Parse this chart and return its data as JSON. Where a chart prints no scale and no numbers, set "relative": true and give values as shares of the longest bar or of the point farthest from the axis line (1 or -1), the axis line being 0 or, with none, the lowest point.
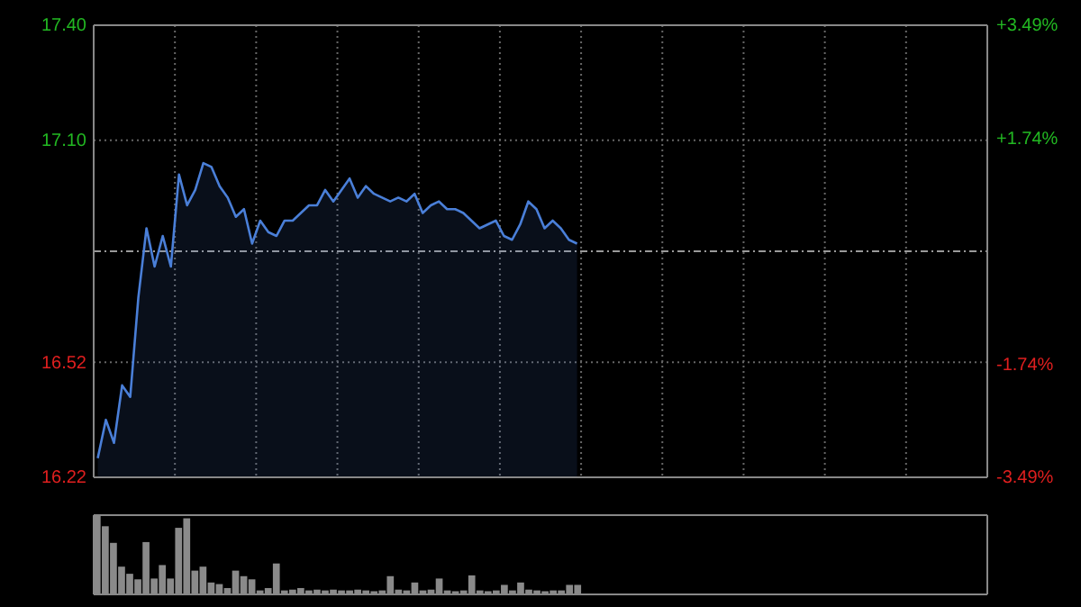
{
  "chart_data": [
    {
      "type": "area",
      "color": "#4a7fd8",
      "categories": [
        null,
        null,
        null,
        null,
        null,
        null,
        null,
        null,
        null,
        null,
        null,
        null,
        null,
        null,
        null,
        null,
        null,
        null,
        null,
        null,
        null,
        null,
        null,
        null,
        null,
        null,
        null,
        null,
        null,
        null,
        null,
        null,
        null,
        null,
        null,
        null,
        null,
        null,
        null,
        null,
        null,
        null,
        null,
        null,
        null,
        null,
        null,
        null,
        null,
        null,
        null,
        null,
        null,
        null,
        null,
        null,
        null,
        null,
        null,
        null
      ],
      "values": [
        16.27,
        16.37,
        16.31,
        16.46,
        16.43,
        16.69,
        16.87,
        16.77,
        16.85,
        16.77,
        17.01,
        16.93,
        16.97,
        17.04,
        17.03,
        16.98,
        16.95,
        16.9,
        16.92,
        16.83,
        16.89,
        16.86,
        16.85,
        16.89,
        16.89,
        16.91,
        16.93,
        16.93,
        16.97,
        16.94,
        16.97,
        17.0,
        16.95,
        16.98,
        16.96,
        16.95,
        16.94,
        16.95,
        16.94,
        16.96,
        16.91,
        16.93,
        16.94,
        16.92,
        16.92,
        16.91,
        16.89,
        16.87,
        16.88,
        16.89,
        16.85,
        16.84,
        16.88,
        16.94,
        16.92,
        16.87,
        16.89,
        16.87,
        16.84,
        16.83
      ],
      "ylim": [
        16.22,
        17.4
      ],
      "yticks": [
        {
          "value": 16.22,
          "label": "16.22"
        },
        {
          "value": 16.52,
          "label": "16.52"
        },
        {
          "value": 17.1,
          "label": "17.10"
        },
        {
          "value": 17.4,
          "label": "17.40"
        }
      ],
      "y2lim": [
        -3.49,
        3.49
      ],
      "y2ticks": [
        {
          "value": -3.49,
          "label": "-3.49%"
        },
        {
          "value": -1.74,
          "label": "-1.74%"
        },
        {
          "value": 1.74,
          "label": "+1.74%"
        },
        {
          "value": 3.49,
          "label": "+3.49%"
        }
      ],
      "ref_lines": [
        {
          "axis": "y",
          "value": 16.81,
          "line_style": "dashed",
          "color": "#9a9a9a"
        }
      ],
      "grid": true,
      "tick_labels": "y"
    },
    {
      "type": "bar",
      "relative": true,
      "color": "#8a8a8a",
      "categories": [
        null,
        null,
        null,
        null,
        null,
        null,
        null,
        null,
        null,
        null,
        null,
        null,
        null,
        null,
        null,
        null,
        null,
        null,
        null,
        null,
        null,
        null,
        null,
        null,
        null,
        null,
        null,
        null,
        null,
        null,
        null,
        null,
        null,
        null,
        null,
        null,
        null,
        null,
        null,
        null,
        null,
        null,
        null,
        null,
        null,
        null,
        null,
        null,
        null,
        null,
        null,
        null,
        null,
        null,
        null,
        null,
        null,
        null,
        null,
        null
      ],
      "values": [
        1.0,
        0.86,
        0.65,
        0.35,
        0.26,
        0.19,
        0.66,
        0.2,
        0.37,
        0.2,
        0.84,
        0.96,
        0.3,
        0.35,
        0.15,
        0.13,
        0.08,
        0.3,
        0.23,
        0.19,
        0.05,
        0.08,
        0.39,
        0.05,
        0.06,
        0.08,
        0.05,
        0.06,
        0.05,
        0.06,
        0.05,
        0.05,
        0.06,
        0.05,
        0.04,
        0.05,
        0.23,
        0.06,
        0.05,
        0.15,
        0.05,
        0.06,
        0.2,
        0.05,
        0.04,
        0.05,
        0.24,
        0.05,
        0.04,
        0.05,
        0.12,
        0.05,
        0.15,
        0.06,
        0.05,
        0.04,
        0.05,
        0.05,
        0.12,
        0.12
      ]
    }
  ]
}
